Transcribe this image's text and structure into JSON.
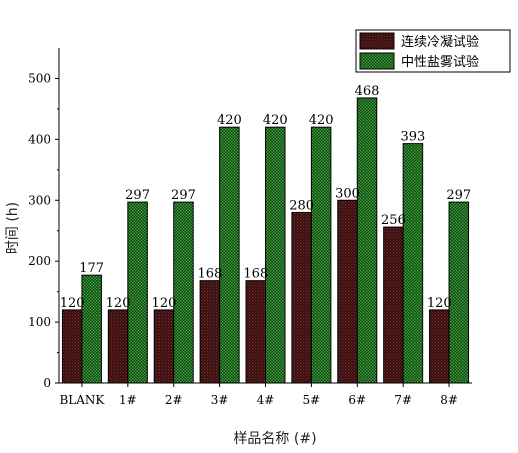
{
  "chart_data": {
    "type": "bar",
    "categories": [
      "BLANK",
      "1#",
      "2#",
      "3#",
      "4#",
      "5#",
      "6#",
      "7#",
      "8#"
    ],
    "series": [
      {
        "name": "连续冷凝试验",
        "values": [
          120,
          120,
          120,
          168,
          168,
          280,
          300,
          256,
          120
        ],
        "color": "#4a1a1a"
      },
      {
        "name": "中性盐雾试验",
        "values": [
          177,
          297,
          297,
          420,
          420,
          420,
          468,
          393,
          297
        ],
        "color": "#1e6e1e"
      }
    ],
    "xlabel": "样品名称 (#)",
    "ylabel": "时间 (h)",
    "ylim": [
      0,
      550
    ],
    "yticks": [
      0,
      100,
      200,
      300,
      400,
      500
    ],
    "legend_position": "top-right",
    "grid": false
  }
}
